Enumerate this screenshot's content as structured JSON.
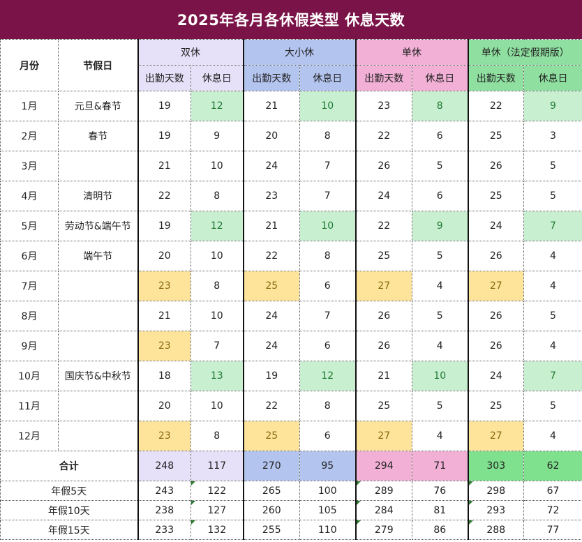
{
  "title": "2025年各月各休假类型 休息天数",
  "headers": {
    "month": "月份",
    "holiday": "节假日",
    "groups": [
      "双休",
      "大小休",
      "单休",
      "单休（法定假期版）"
    ],
    "sub_work": "出勤天数",
    "sub_rest": "休息日"
  },
  "rows": [
    {
      "month": "1月",
      "holiday": "元旦&春节",
      "values": [
        "19",
        "12",
        "21",
        "10",
        "23",
        "8",
        "22",
        "9"
      ]
    },
    {
      "month": "2月",
      "holiday": "春节",
      "values": [
        "19",
        "9",
        "20",
        "8",
        "22",
        "6",
        "25",
        "3"
      ]
    },
    {
      "month": "3月",
      "holiday": "",
      "values": [
        "21",
        "10",
        "24",
        "7",
        "26",
        "5",
        "26",
        "5"
      ]
    },
    {
      "month": "4月",
      "holiday": "清明节",
      "values": [
        "22",
        "8",
        "23",
        "7",
        "24",
        "6",
        "25",
        "5"
      ]
    },
    {
      "month": "5月",
      "holiday": "劳动节&端午节",
      "values": [
        "19",
        "12",
        "21",
        "10",
        "22",
        "9",
        "24",
        "7"
      ]
    },
    {
      "month": "6月",
      "holiday": "端午节",
      "values": [
        "20",
        "10",
        "22",
        "8",
        "25",
        "5",
        "26",
        "4"
      ]
    },
    {
      "month": "7月",
      "holiday": "",
      "values": [
        "23",
        "8",
        "25",
        "6",
        "27",
        "4",
        "27",
        "4"
      ]
    },
    {
      "month": "8月",
      "holiday": "",
      "values": [
        "21",
        "10",
        "24",
        "7",
        "26",
        "5",
        "26",
        "5"
      ]
    },
    {
      "month": "9月",
      "holiday": "",
      "values": [
        "23",
        "7",
        "24",
        "6",
        "26",
        "4",
        "26",
        "4"
      ]
    },
    {
      "month": "10月",
      "holiday": "国庆节&中秋节",
      "values": [
        "18",
        "13",
        "19",
        "12",
        "21",
        "10",
        "24",
        "7"
      ]
    },
    {
      "month": "11月",
      "holiday": "",
      "values": [
        "20",
        "10",
        "22",
        "8",
        "25",
        "5",
        "25",
        "5"
      ]
    },
    {
      "month": "12月",
      "holiday": "",
      "values": [
        "23",
        "8",
        "25",
        "6",
        "27",
        "4",
        "27",
        "4"
      ]
    }
  ],
  "total": {
    "label": "合计",
    "values": [
      "248",
      "117",
      "270",
      "95",
      "294",
      "71",
      "303",
      "62"
    ]
  },
  "leave_rows": [
    {
      "label": "年假5天",
      "values": [
        "243",
        "122",
        "265",
        "100",
        "289",
        "76",
        "298",
        "67"
      ]
    },
    {
      "label": "年假10天",
      "values": [
        "238",
        "127",
        "260",
        "105",
        "284",
        "81",
        "293",
        "72"
      ]
    },
    {
      "label": "年假15天",
      "values": [
        "233",
        "132",
        "255",
        "110",
        "279",
        "86",
        "288",
        "77"
      ]
    }
  ]
}
